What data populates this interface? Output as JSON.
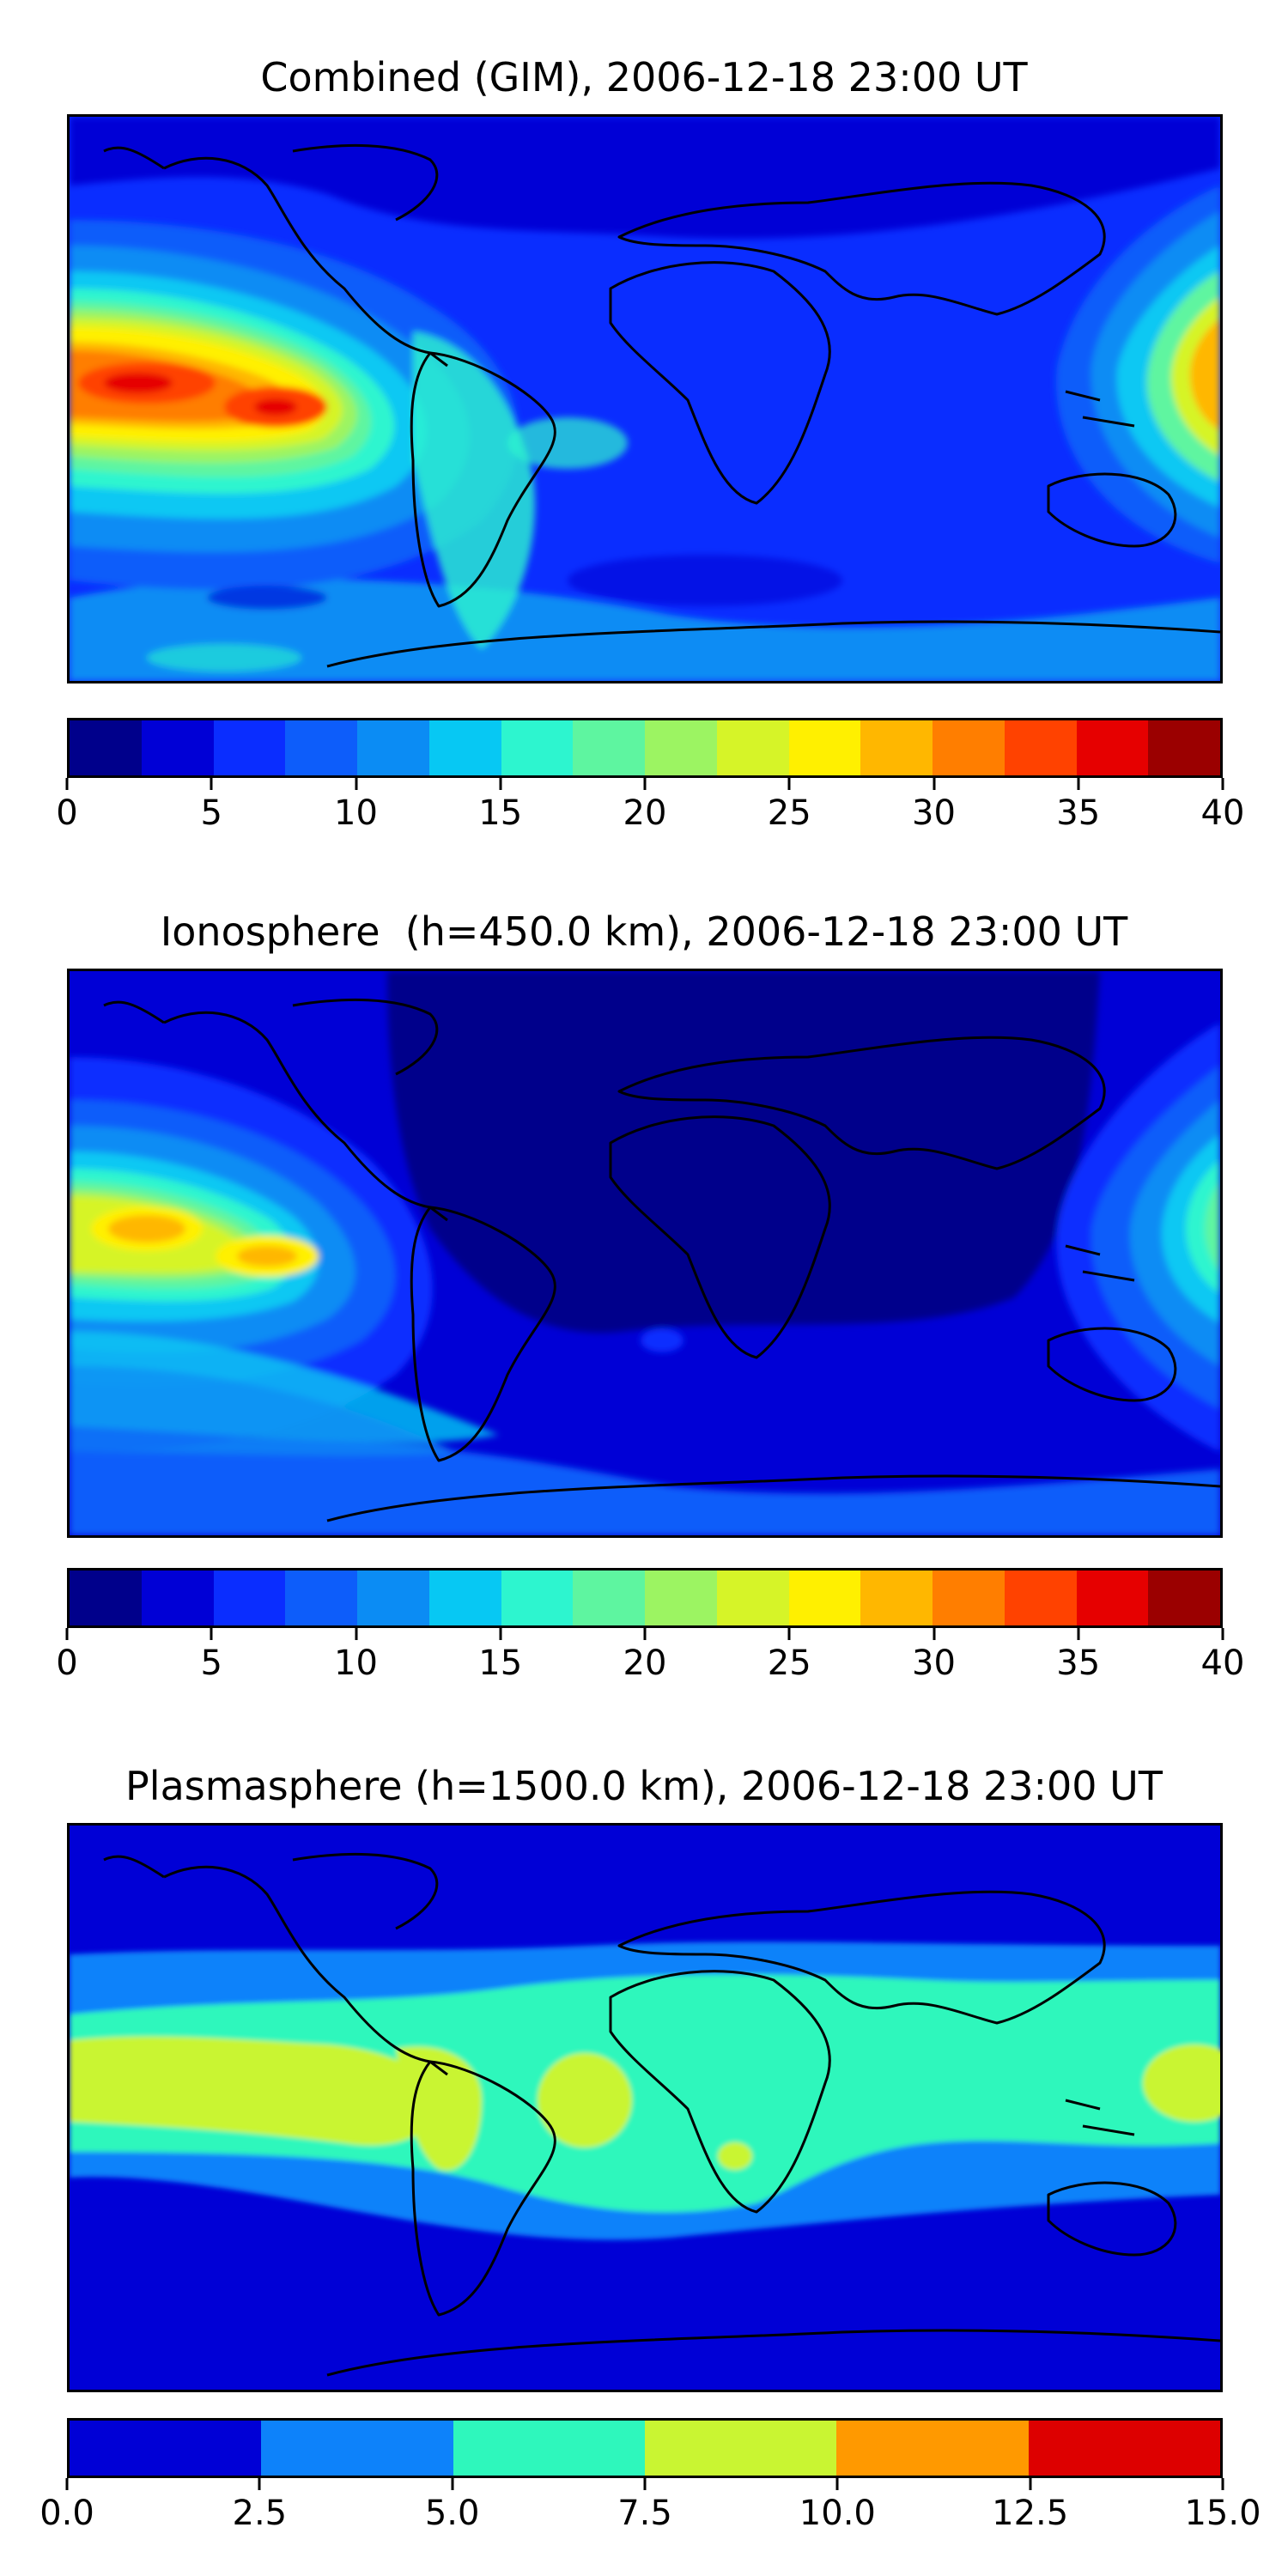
{
  "panels": [
    {
      "title": "Combined (GIM), 2006-12-18 23:00 UT"
    },
    {
      "title": "Ionosphere  (h=450.0 km), 2006-12-18 23:00 UT"
    },
    {
      "title": "Plasmasphere (h=1500.0 km), 2006-12-18 23:00 UT"
    }
  ],
  "colorbar_jet16": [
    "#00008b",
    "#0000d6",
    "#0a2dff",
    "#0d5dfa",
    "#0b8cf4",
    "#07c8f3",
    "#2df5cf",
    "#5ef5a0",
    "#9cf462",
    "#d6f428",
    "#fff000",
    "#ffb700",
    "#ff7e00",
    "#ff4200",
    "#e60000",
    "#9b0000"
  ],
  "colorbar_jet6": [
    "#0000d6",
    "#0d82fa",
    "#2ef7bc",
    "#c9f532",
    "#ff9900",
    "#dd0000"
  ],
  "chart_data": [
    {
      "type": "heatmap",
      "title": "Combined (GIM), 2006-12-18 23:00 UT",
      "projection": "plate carree (world map with coastlines)",
      "colorbar": {
        "min": 0,
        "max": 40,
        "step": 2.5,
        "ticks": [
          0,
          5,
          10,
          15,
          20,
          25,
          30,
          35,
          40
        ],
        "tick_labels": [
          "0",
          "5",
          "10",
          "15",
          "20",
          "25",
          "30",
          "35",
          "40"
        ]
      },
      "features": [
        {
          "region": "Eastern Pacific, south of equator",
          "value_max": 37.5
        },
        {
          "region": "Western Pacific, east of Indonesia",
          "value_max": 30
        },
        {
          "region": "North Atlantic / Eurasia / Arctic",
          "value_min": 2.5
        }
      ]
    },
    {
      "type": "heatmap",
      "title": "Ionosphere  (h=450.0 km), 2006-12-18 23:00 UT",
      "projection": "plate carree (world map with coastlines)",
      "colorbar": {
        "min": 0,
        "max": 40,
        "step": 2.5,
        "ticks": [
          0,
          5,
          10,
          15,
          20,
          25,
          30,
          35,
          40
        ],
        "tick_labels": [
          "0",
          "5",
          "10",
          "15",
          "20",
          "25",
          "30",
          "35",
          "40"
        ]
      },
      "features": [
        {
          "region": "Eastern Pacific, south of equator",
          "value_max": 30
        },
        {
          "region": "Western Pacific",
          "value_max": 22.5
        },
        {
          "region": "Africa / Eurasia / Atlantic (night side)",
          "value_min": 0
        }
      ]
    },
    {
      "type": "heatmap",
      "title": "Plasmasphere (h=1500.0 km), 2006-12-18 23:00 UT",
      "projection": "plate carree (world map with coastlines)",
      "colorbar": {
        "min": 0.0,
        "max": 15.0,
        "step": 2.5,
        "ticks": [
          0.0,
          2.5,
          5.0,
          7.5,
          10.0,
          12.5,
          15.0
        ],
        "tick_labels": [
          "0.0",
          "2.5",
          "5.0",
          "7.5",
          "10.0",
          "12.5",
          "15.0"
        ]
      },
      "features": [
        {
          "region": "Low-latitude band",
          "value_range": [
            5.0,
            10.0
          ]
        },
        {
          "region": "High latitudes",
          "value_range": [
            0.0,
            2.5
          ]
        }
      ]
    }
  ]
}
